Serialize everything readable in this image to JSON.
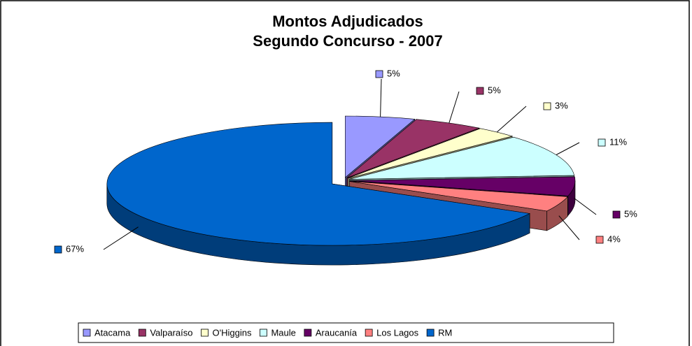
{
  "chart_data": {
    "type": "pie3d",
    "title": "Montos Adjudicados",
    "subtitle": "Segundo Concurso - 2007",
    "categories": [
      "Atacama",
      "Valparaíso",
      "O'Higgins",
      "Maule",
      "Araucanía",
      "Los Lagos",
      "RM"
    ],
    "values": [
      5,
      5,
      3,
      11,
      5,
      4,
      67
    ],
    "value_labels": [
      "5%",
      "5%",
      "3%",
      "11%",
      "5%",
      "4%",
      "67%"
    ],
    "colors": [
      "#9999ff",
      "#993366",
      "#ffffcc",
      "#ccffff",
      "#660066",
      "#ff8080",
      "#0066cc"
    ],
    "legend": "bottom"
  }
}
